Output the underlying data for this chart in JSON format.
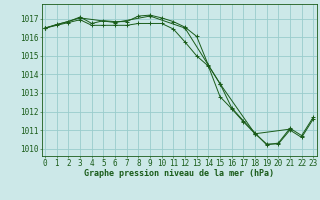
{
  "line1": {
    "x": [
      0,
      1,
      2,
      3,
      4,
      5,
      6,
      7,
      8,
      9,
      10,
      11,
      12,
      13,
      14,
      15,
      16,
      17,
      18,
      19,
      20,
      21,
      22,
      23
    ],
    "y": [
      1016.5,
      1016.7,
      1016.85,
      1017.1,
      1016.75,
      1016.9,
      1016.85,
      1016.85,
      1017.15,
      1017.2,
      1017.05,
      1016.85,
      1016.55,
      1016.05,
      1014.5,
      1013.5,
      1012.2,
      1011.5,
      1010.85,
      1010.2,
      1010.3,
      1011.1,
      1010.7,
      1011.7
    ]
  },
  "line2": {
    "x": [
      0,
      1,
      2,
      3,
      4,
      5,
      6,
      7,
      8,
      9,
      10,
      11,
      12,
      13,
      14,
      15,
      16,
      17,
      18,
      19,
      20,
      21,
      22,
      23
    ],
    "y": [
      1016.5,
      1016.65,
      1016.8,
      1016.95,
      1016.65,
      1016.65,
      1016.65,
      1016.65,
      1016.75,
      1016.75,
      1016.75,
      1016.45,
      1015.75,
      1015.0,
      1014.45,
      1012.8,
      1012.15,
      1011.45,
      1010.8,
      1010.25,
      1010.25,
      1011.0,
      1010.6,
      1011.6
    ]
  },
  "line3": {
    "x": [
      0,
      3,
      6,
      9,
      12,
      15,
      18,
      21
    ],
    "y": [
      1016.5,
      1017.05,
      1016.8,
      1017.15,
      1016.5,
      1013.5,
      1010.8,
      1011.05
    ]
  },
  "bg_color": "#cce8e8",
  "grid_color": "#99cccc",
  "line_color": "#1a5c1a",
  "ylabel_values": [
    1010,
    1011,
    1012,
    1013,
    1014,
    1015,
    1016,
    1017
  ],
  "xlabel_values": [
    0,
    1,
    2,
    3,
    4,
    5,
    6,
    7,
    8,
    9,
    10,
    11,
    12,
    13,
    14,
    15,
    16,
    17,
    18,
    19,
    20,
    21,
    22,
    23
  ],
  "xlabel": "Graphe pression niveau de la mer (hPa)",
  "ylim": [
    1009.6,
    1017.8
  ],
  "xlim": [
    -0.3,
    23.3
  ],
  "tick_fontsize": 5.5,
  "xlabel_fontsize": 6.0
}
